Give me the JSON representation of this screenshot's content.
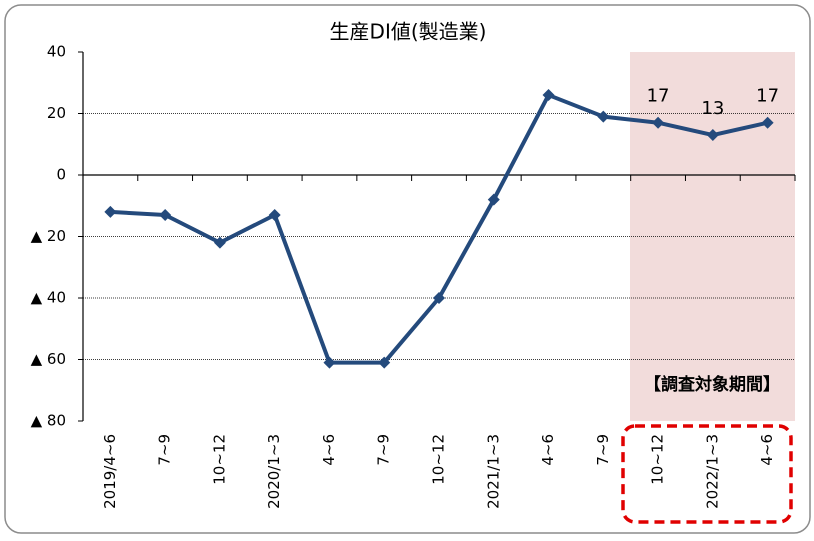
{
  "chart_data": {
    "type": "line",
    "title": "生産DI値(製造業)",
    "categories": [
      "2019/4~6",
      "7~9",
      "10~12",
      "2020/1~3",
      "4~6",
      "7~9",
      "10~12",
      "2021/1~3",
      "4~6",
      "7~9",
      "10~12",
      "2022/1~3",
      "4~6"
    ],
    "series": [
      {
        "name": "生産DI値",
        "color": "#244a7c",
        "values": [
          -12,
          -13,
          -22,
          -13,
          -61,
          -61,
          -40,
          -8,
          26,
          19,
          17,
          13,
          17
        ],
        "value_labels": [
          null,
          null,
          null,
          null,
          null,
          null,
          null,
          null,
          null,
          null,
          "17",
          "13",
          "17"
        ]
      }
    ],
    "ylim": [
      -80,
      40
    ],
    "yticks": [
      {
        "value": -80,
        "label": "▲ 80"
      },
      {
        "value": -60,
        "label": "▲ 60"
      },
      {
        "value": -40,
        "label": "▲ 40"
      },
      {
        "value": -20,
        "label": "▲ 20"
      },
      0,
      20,
      40
    ],
    "grid": true,
    "annotation": "【調査対象期間】"
  }
}
